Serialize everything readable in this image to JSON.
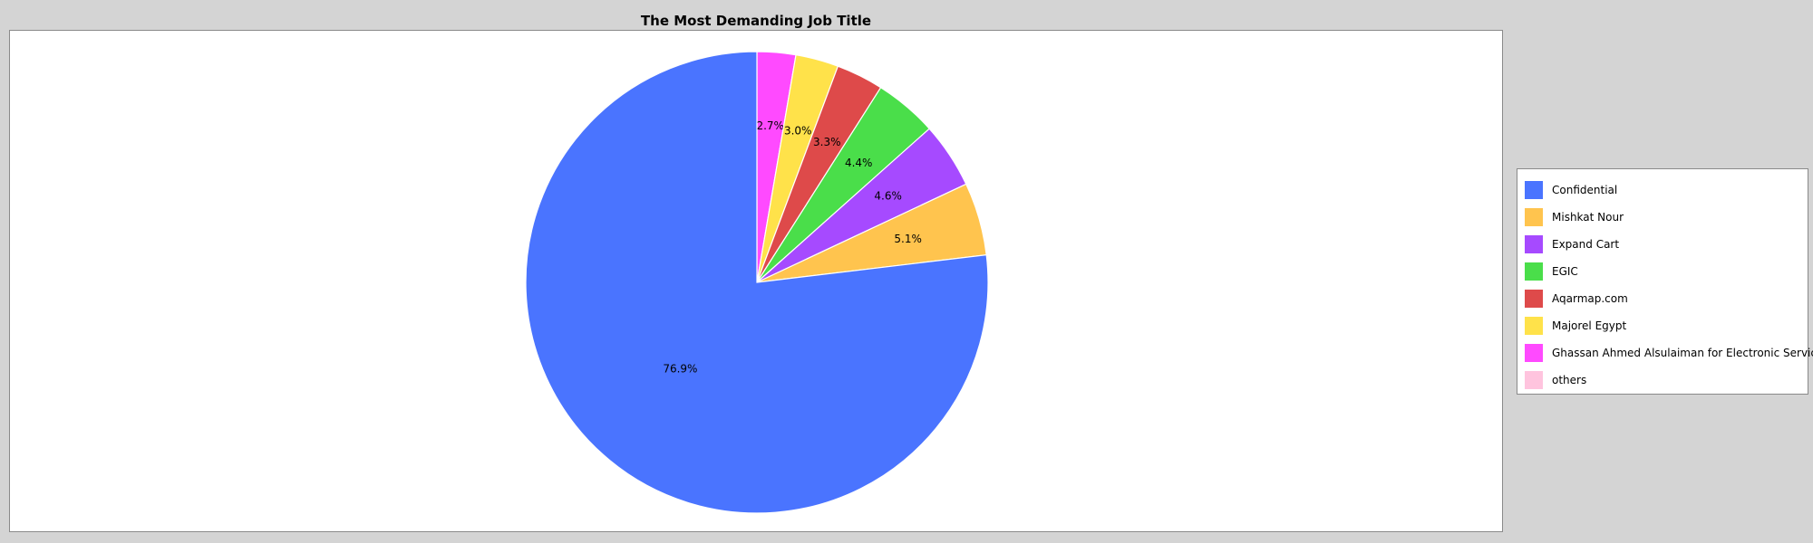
{
  "chart_data": {
    "type": "pie",
    "title": "The Most Demanding Job Title",
    "slices": [
      {
        "label": "Confidential",
        "value": 76.9,
        "value_label": "76.9%",
        "color": "#4a74ff"
      },
      {
        "label": "Mishkat Nour",
        "value": 5.1,
        "value_label": "5.1%",
        "color": "#ffc44e"
      },
      {
        "label": "Expand Cart",
        "value": 4.6,
        "value_label": "4.6%",
        "color": "#a64aff"
      },
      {
        "label": "EGIC",
        "value": 4.4,
        "value_label": "4.4%",
        "color": "#4ade4a"
      },
      {
        "label": "Aqarmap.com",
        "value": 3.3,
        "value_label": "3.3%",
        "color": "#de4a4a"
      },
      {
        "label": "Majorel Egypt",
        "value": 3.0,
        "value_label": "3.0%",
        "color": "#ffe24a"
      },
      {
        "label": "Ghassan Ahmed Alsulaiman for Electronic Services",
        "value": 2.7,
        "value_label": "2.7%",
        "color": "#ff4aff"
      },
      {
        "label": "others",
        "value": 0,
        "value_label": "",
        "color": "#ffc4de"
      }
    ],
    "legend_position": "right",
    "start_angle": "12 o'clock",
    "direction": "clockwise from Ghassan Ahmed Alsulaiman for Electronic Services"
  }
}
